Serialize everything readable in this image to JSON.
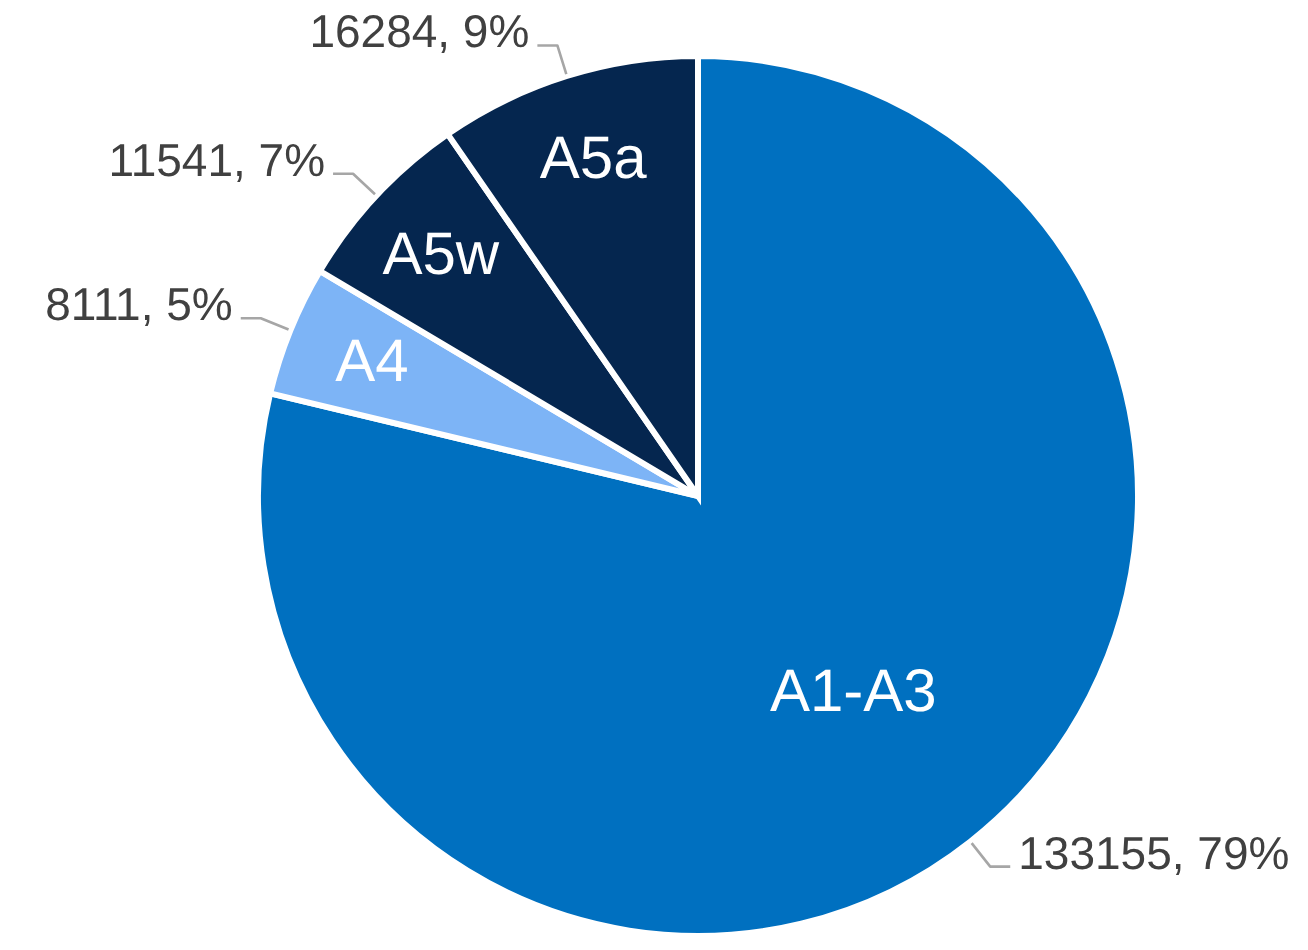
{
  "chart_data": {
    "type": "pie",
    "categories": [
      "A1-A3",
      "A4",
      "A5w",
      "A5a"
    ],
    "values": [
      133155,
      8111,
      11541,
      16284
    ],
    "colors": [
      "#0070c0",
      "#7db4f6",
      "#05264f",
      "#05264f"
    ],
    "value_labels": [
      "133155, 79%",
      "8111, 5%",
      "11541, 7%",
      "16284, 9%"
    ]
  }
}
